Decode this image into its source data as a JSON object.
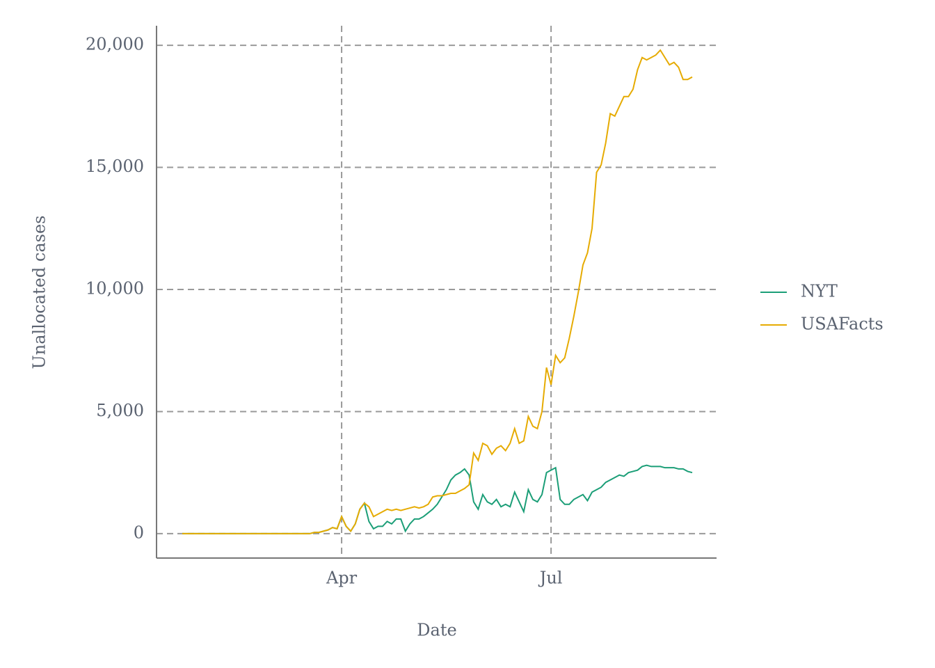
{
  "chart_data": {
    "type": "line",
    "x_label": "Date",
    "y_label": "Unallocated cases",
    "categories": [
      null,
      null,
      null,
      null,
      null,
      null,
      null,
      null,
      null,
      null,
      null,
      null,
      null,
      null,
      null,
      null,
      null,
      null,
      null,
      null,
      null,
      null,
      null,
      null,
      null,
      null,
      null,
      null,
      null,
      null,
      null,
      null,
      null,
      null,
      null,
      "Apr",
      null,
      null,
      null,
      null,
      null,
      null,
      null,
      null,
      null,
      null,
      null,
      null,
      null,
      null,
      null,
      null,
      null,
      null,
      null,
      null,
      null,
      null,
      null,
      null,
      null,
      null,
      null,
      null,
      null,
      null,
      null,
      null,
      null,
      null,
      null,
      null,
      null,
      null,
      null,
      null,
      null,
      null,
      null,
      null,
      null,
      "Jul",
      null,
      null,
      null,
      null,
      null,
      null,
      null,
      null,
      null,
      null,
      null,
      null,
      null,
      null,
      null,
      null,
      null,
      null,
      null,
      null,
      null,
      null,
      null,
      null,
      null,
      null,
      null,
      null,
      null,
      null,
      null
    ],
    "series": [
      {
        "name": "NYT",
        "color": "#1b9e77",
        "values": [
          0,
          0,
          0,
          0,
          0,
          0,
          0,
          0,
          0,
          0,
          0,
          0,
          0,
          0,
          0,
          0,
          0,
          0,
          0,
          0,
          0,
          0,
          0,
          0,
          0,
          0,
          0,
          0,
          0,
          50,
          50,
          100,
          150,
          250,
          200,
          700,
          300,
          100,
          400,
          1000,
          1250,
          500,
          200,
          300,
          300,
          500,
          400,
          600,
          600,
          100,
          400,
          600,
          600,
          700,
          850,
          1000,
          1200,
          1500,
          1800,
          2200,
          2400,
          2500,
          2650,
          2400,
          1300,
          1000,
          1600,
          1300,
          1200,
          1400,
          1100,
          1200,
          1100,
          1700,
          1300,
          900,
          1800,
          1400,
          1300,
          1600,
          2500,
          2600,
          2700,
          1400,
          1200,
          1200,
          1400,
          1500,
          1600,
          1350,
          1700,
          1800,
          1900,
          2100,
          2200,
          2300,
          2400,
          2350,
          2500,
          2550,
          2600,
          2750,
          2800,
          2750,
          2750,
          2750,
          2700,
          2700,
          2700,
          2650,
          2650,
          2550,
          2500
        ]
      },
      {
        "name": "USAFacts",
        "color": "#e6ab02",
        "values": [
          0,
          0,
          0,
          0,
          0,
          0,
          0,
          0,
          0,
          0,
          0,
          0,
          0,
          0,
          0,
          0,
          0,
          0,
          0,
          0,
          0,
          0,
          0,
          0,
          0,
          0,
          0,
          0,
          0,
          50,
          50,
          100,
          150,
          250,
          200,
          700,
          300,
          100,
          400,
          1000,
          1250,
          1100,
          700,
          800,
          900,
          1000,
          950,
          1000,
          950,
          1000,
          1050,
          1100,
          1050,
          1100,
          1200,
          1500,
          1550,
          1550,
          1600,
          1650,
          1650,
          1750,
          1850,
          2000,
          3300,
          3000,
          3700,
          3600,
          3250,
          3500,
          3600,
          3400,
          3700,
          4300,
          3700,
          3800,
          4800,
          4400,
          4300,
          5000,
          6800,
          6100,
          7300,
          7000,
          7200,
          8000,
          8900,
          9900,
          11000,
          11500,
          12500,
          14800,
          15100,
          16000,
          17200,
          17100,
          17500,
          17900,
          17900,
          18200,
          19000,
          19500,
          19400,
          19500,
          19600,
          19800,
          19500,
          19200,
          19300,
          19100,
          18600,
          18600,
          18700
        ]
      }
    ],
    "ylim": [
      -1000,
      20800
    ],
    "yticks": [
      0,
      {
        "value": 5000,
        "label": "5,000"
      },
      {
        "value": 10000,
        "label": "10,000"
      },
      {
        "value": 15000,
        "label": "15,000"
      },
      {
        "value": 20000,
        "label": "20,000"
      }
    ],
    "grid": true,
    "legend": "right"
  }
}
